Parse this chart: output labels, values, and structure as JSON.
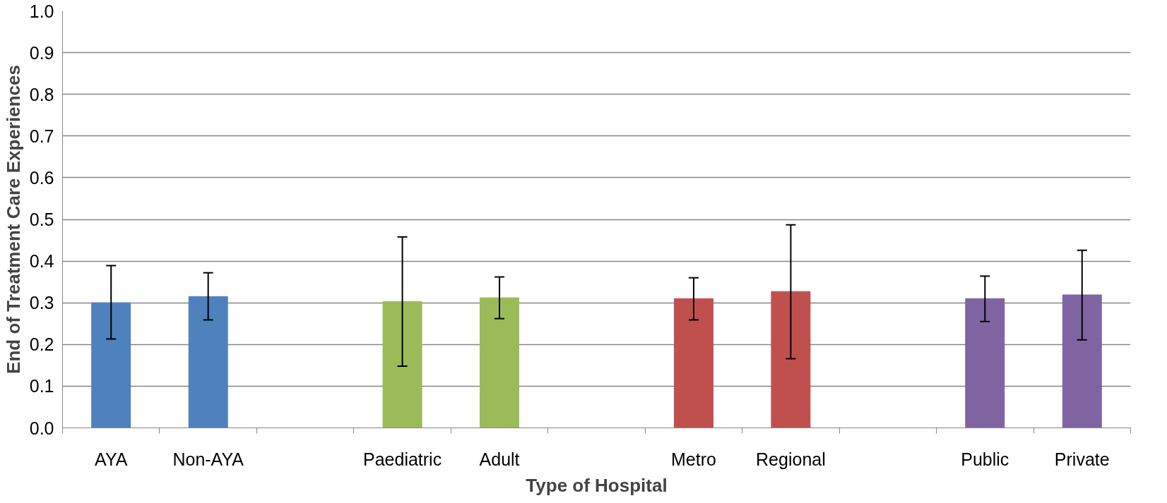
{
  "chart_data": {
    "type": "bar",
    "xlabel": "Type of Hospital",
    "ylabel": "End of Treatment Care Experiences",
    "categories": [
      "AYA",
      "Non-AYA",
      null,
      "Paediatric",
      "Adult",
      null,
      "Metro",
      "Regional",
      null,
      "Public",
      "Private"
    ],
    "values": [
      0.3,
      0.315,
      null,
      0.303,
      0.312,
      null,
      0.31,
      0.327,
      null,
      0.31,
      0.319
    ],
    "errors": [
      [
        0.213,
        0.389
      ],
      [
        0.259,
        0.372
      ],
      null,
      [
        0.148,
        0.458
      ],
      [
        0.262,
        0.362
      ],
      null,
      [
        0.259,
        0.36
      ],
      [
        0.166,
        0.487
      ],
      null,
      [
        0.255,
        0.364
      ],
      [
        0.211,
        0.426
      ]
    ],
    "colors": [
      "#4f81bd",
      "#4f81bd",
      null,
      "#9bbb59",
      "#9bbb59",
      null,
      "#c0504d",
      "#c0504d",
      null,
      "#8064a2",
      "#8064a2"
    ],
    "ylim": [
      0,
      1
    ],
    "yticks": [
      {
        "value": 0,
        "label": "0.0"
      },
      0.1,
      0.2,
      0.3,
      0.4,
      0.5,
      0.6,
      0.7,
      0.8,
      0.9,
      {
        "value": 1,
        "label": "1.0"
      }
    ],
    "grid": "y"
  }
}
